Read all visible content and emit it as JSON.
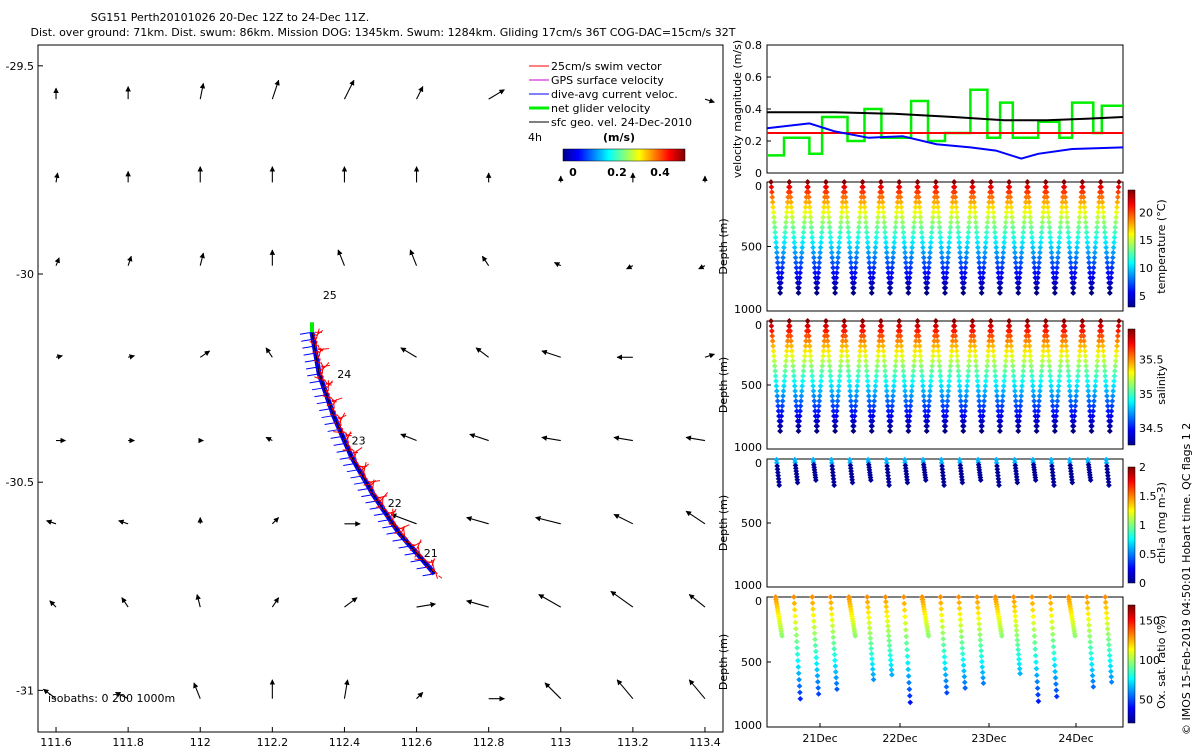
{
  "title_line1": "SG151 Perth20101026 20-Dec 12Z to 24-Dec 11Z.",
  "title_line2": "Dist. over ground: 71km. Dist. swum: 86km. Mission DOG: 1345km. Swum: 1284km. Gliding 17cm/s 36T COG-DAC=15cm/s 32T",
  "credit": "© IMOS 15-Feb-2019 04:50:01 Hobart time. QC flags 1  2",
  "colors": {
    "swim": "#ff0000",
    "gps": "#cc00cc",
    "dac": "#0000ff",
    "net": "#00ee00",
    "geo": "#000000"
  },
  "chart_data": [
    {
      "type": "map-quiver",
      "xlim": [
        111.55,
        113.45
      ],
      "ylim": [
        -31.1,
        -29.45
      ],
      "xticks": [
        111.6,
        111.8,
        112,
        112.2,
        112.4,
        112.6,
        112.8,
        113,
        113.2,
        113.4
      ],
      "xtick_labels": [
        "111.6",
        "111.8",
        "112",
        "112.2",
        "112.4",
        "112.6",
        "112.8",
        "113",
        "113.2",
        "113.4"
      ],
      "yticks": [
        -29.5,
        -30,
        -30.5,
        -31
      ],
      "ytick_labels": [
        "-29.5",
        "-30",
        "-30.5",
        "-31"
      ],
      "legend": {
        "placement": "top-right",
        "entries": [
          "25cm/s swim vector",
          "GPS surface velocity",
          "dive-avg current veloc.",
          "net glider velocity",
          "sfc geo. vel. 24-Dec-2010"
        ],
        "scale_label": "4h",
        "colorbar_title": "(m/s)",
        "colorbar_ticks": [
          "0",
          "0.2",
          "0.4"
        ]
      },
      "isobaths_label": "isobaths: 0   200  1000m",
      "day_labels": [
        {
          "text": "25",
          "lon": 112.34,
          "lat": -30.06
        },
        {
          "text": "24",
          "lon": 112.38,
          "lat": -30.25
        },
        {
          "text": "23",
          "lon": 112.42,
          "lat": -30.41
        },
        {
          "text": "22",
          "lon": 112.52,
          "lat": -30.56
        },
        {
          "text": "21",
          "lon": 112.62,
          "lat": -30.68
        }
      ],
      "track": [
        [
          112.31,
          -30.14
        ],
        [
          112.33,
          -30.24
        ],
        [
          112.37,
          -30.34
        ],
        [
          112.42,
          -30.44
        ],
        [
          112.48,
          -30.53
        ],
        [
          112.55,
          -30.62
        ],
        [
          112.65,
          -30.72
        ]
      ],
      "net_start": [
        112.31,
        -30.14
      ],
      "geo_vectors": [
        [
          111.6,
          -29.58,
          0,
          0.035
        ],
        [
          111.8,
          -29.58,
          0,
          0.04
        ],
        [
          112,
          -29.58,
          0.01,
          0.05
        ],
        [
          112.2,
          -29.58,
          0.02,
          0.06
        ],
        [
          112.4,
          -29.58,
          0.03,
          0.06
        ],
        [
          112.6,
          -29.58,
          0.02,
          0.04
        ],
        [
          112.8,
          -29.58,
          0.05,
          0.03
        ],
        [
          113.4,
          -29.58,
          0.03,
          -0.01
        ],
        [
          111.6,
          -29.78,
          0.005,
          0.03
        ],
        [
          111.8,
          -29.78,
          0,
          0.035
        ],
        [
          112,
          -29.78,
          0,
          0.05
        ],
        [
          112.2,
          -29.78,
          0,
          0.05
        ],
        [
          112.4,
          -29.78,
          0,
          0.05
        ],
        [
          112.6,
          -29.78,
          0,
          0.05
        ],
        [
          112.8,
          -29.78,
          0,
          0.03
        ],
        [
          113,
          -29.78,
          0,
          0.02
        ],
        [
          113.2,
          -29.78,
          0,
          0.03
        ],
        [
          113.4,
          -29.78,
          0,
          0.02
        ],
        [
          111.6,
          -29.98,
          0.01,
          0.025
        ],
        [
          111.8,
          -29.98,
          0.01,
          0.03
        ],
        [
          112,
          -29.98,
          0.01,
          0.04
        ],
        [
          112.2,
          -29.98,
          0,
          0.05
        ],
        [
          112.4,
          -29.98,
          -0.02,
          0.05
        ],
        [
          112.6,
          -29.98,
          -0.02,
          0.05
        ],
        [
          112.8,
          -29.98,
          -0.02,
          0.03
        ],
        [
          113,
          -29.98,
          -0.02,
          0.01
        ],
        [
          113.2,
          -29.98,
          -0.02,
          -0.01
        ],
        [
          113.4,
          -29.98,
          -0.02,
          -0.01
        ],
        [
          111.6,
          -30.2,
          0.02,
          0.005
        ],
        [
          111.8,
          -30.2,
          0.02,
          0.005
        ],
        [
          112,
          -30.2,
          0.03,
          0.02
        ],
        [
          112.2,
          -30.2,
          -0.02,
          0.03
        ],
        [
          112.6,
          -30.2,
          -0.05,
          0.03
        ],
        [
          112.8,
          -30.2,
          -0.04,
          0.03
        ],
        [
          113,
          -30.2,
          -0.06,
          0.02
        ],
        [
          113.2,
          -30.2,
          -0.05,
          0
        ],
        [
          113.4,
          -30.2,
          0.03,
          0.01
        ],
        [
          111.6,
          -30.4,
          0.03,
          0
        ],
        [
          111.8,
          -30.4,
          0.02,
          0
        ],
        [
          112,
          -30.4,
          0.01,
          0
        ],
        [
          112.2,
          -30.4,
          -0.02,
          0.01
        ],
        [
          112.6,
          -30.4,
          -0.05,
          0.02
        ],
        [
          112.8,
          -30.4,
          -0.06,
          0.02
        ],
        [
          113,
          -30.4,
          -0.06,
          0.01
        ],
        [
          113.2,
          -30.4,
          -0.06,
          0.01
        ],
        [
          113.4,
          -30.4,
          -0.06,
          0.01
        ],
        [
          111.6,
          -30.6,
          -0.03,
          0.01
        ],
        [
          111.8,
          -30.6,
          -0.03,
          0.01
        ],
        [
          112,
          -30.6,
          0,
          0.02
        ],
        [
          112.2,
          -30.6,
          0.02,
          0.02
        ],
        [
          112.4,
          -30.6,
          0.05,
          0
        ],
        [
          112.6,
          -30.6,
          -0.08,
          0.03
        ],
        [
          112.8,
          -30.6,
          -0.07,
          0.02
        ],
        [
          113,
          -30.6,
          -0.08,
          0.02
        ],
        [
          113.2,
          -30.6,
          -0.06,
          0.03
        ],
        [
          113.4,
          -30.6,
          -0.06,
          0.04
        ],
        [
          111.6,
          -30.8,
          -0.02,
          0.02
        ],
        [
          111.8,
          -30.8,
          -0.02,
          0.03
        ],
        [
          112,
          -30.8,
          -0.01,
          0.04
        ],
        [
          112.2,
          -30.8,
          0.02,
          0.03
        ],
        [
          112.4,
          -30.8,
          0.04,
          0.03
        ],
        [
          112.6,
          -30.8,
          0.06,
          0.01
        ],
        [
          112.8,
          -30.8,
          -0.07,
          0.02
        ],
        [
          113,
          -30.8,
          -0.07,
          0.04
        ],
        [
          113.2,
          -30.8,
          -0.07,
          0.05
        ],
        [
          113.4,
          -30.8,
          -0.05,
          0.04
        ],
        [
          111.6,
          -31.02,
          -0.04,
          0.03
        ],
        [
          111.8,
          -31.02,
          -0.04,
          0.02
        ],
        [
          112,
          -31.02,
          -0.02,
          0.05
        ],
        [
          112.2,
          -31.02,
          0,
          0.06
        ],
        [
          112.4,
          -31.02,
          0.01,
          0.06
        ],
        [
          112.6,
          -31.02,
          0.02,
          0.02
        ],
        [
          112.8,
          -31.02,
          0.05,
          0
        ],
        [
          113,
          -31.02,
          -0.05,
          0.05
        ],
        [
          113.2,
          -31.02,
          -0.05,
          0.06
        ],
        [
          113.4,
          -31.02,
          -0.05,
          0.06
        ]
      ]
    },
    {
      "type": "line",
      "ylabel": "velocity magnitude (m/s)",
      "ylim": [
        0,
        0.8
      ],
      "yticks": [
        0,
        0.2,
        0.4,
        0.6,
        0.8
      ],
      "xlim": [
        0,
        4.2
      ],
      "series": [
        {
          "name": "net glider velocity",
          "color": "#00ee00",
          "x": [
            0,
            0.2,
            0.2,
            0.5,
            0.5,
            0.65,
            0.65,
            0.95,
            0.95,
            1.15,
            1.15,
            1.35,
            1.35,
            1.7,
            1.7,
            1.9,
            1.9,
            2.1,
            2.1,
            2.4,
            2.4,
            2.6,
            2.6,
            2.75,
            2.75,
            2.9,
            2.9,
            3.2,
            3.2,
            3.45,
            3.45,
            3.6,
            3.6,
            3.85,
            3.85,
            3.95,
            3.95,
            4.2
          ],
          "y": [
            0.11,
            0.11,
            0.22,
            0.22,
            0.12,
            0.12,
            0.35,
            0.35,
            0.2,
            0.2,
            0.4,
            0.4,
            0.22,
            0.22,
            0.45,
            0.45,
            0.2,
            0.2,
            0.25,
            0.25,
            0.52,
            0.52,
            0.22,
            0.22,
            0.44,
            0.44,
            0.22,
            0.22,
            0.32,
            0.32,
            0.22,
            0.22,
            0.44,
            0.44,
            0.25,
            0.25,
            0.42,
            0.42
          ]
        },
        {
          "name": "25cm/s swim vector",
          "color": "#ff0000",
          "x": [
            0,
            4.2
          ],
          "y": [
            0.25,
            0.25
          ]
        },
        {
          "name": "dive-avg current",
          "color": "#0000ff",
          "x": [
            0,
            0.5,
            0.8,
            1.2,
            1.6,
            2.0,
            2.4,
            2.7,
            3.0,
            3.2,
            3.6,
            4.2
          ],
          "y": [
            0.28,
            0.31,
            0.26,
            0.22,
            0.23,
            0.18,
            0.16,
            0.14,
            0.09,
            0.12,
            0.15,
            0.16
          ]
        },
        {
          "name": "sfc geo. vel.",
          "color": "#000000",
          "x": [
            0,
            0.8,
            1.5,
            2.2,
            2.8,
            3.3,
            3.8,
            4.2
          ],
          "y": [
            0.38,
            0.38,
            0.37,
            0.35,
            0.33,
            0.33,
            0.34,
            0.35
          ]
        }
      ]
    },
    {
      "type": "scatter-section",
      "ylabel": "Depth (m)",
      "yticks": [
        "0",
        "500",
        "1000"
      ],
      "colorbar_label": "temperature (°C)",
      "colorbar_ticks": [
        "5",
        "10",
        "15",
        "20"
      ],
      "cmin": 3,
      "cmax": 24,
      "ncycles": 19,
      "maxdepth": 860,
      "shape": "sawtooth"
    },
    {
      "type": "scatter-section",
      "ylabel": "Depth (m)",
      "yticks": [
        "0",
        "500",
        "1000"
      ],
      "colorbar_label": "salinity",
      "colorbar_ticks": [
        "34.5",
        "35",
        "35.5"
      ],
      "cmin": 34.25,
      "cmax": 35.95,
      "ncycles": 19,
      "maxdepth": 860,
      "shape": "sawtooth"
    },
    {
      "type": "scatter-section",
      "ylabel": "Depth (m)",
      "yticks": [
        "0",
        "500",
        "1000"
      ],
      "colorbar_label": "chl-a (mg m-3)",
      "colorbar_ticks": [
        "0",
        "0.5",
        "1",
        "1.5",
        "2"
      ],
      "cmin": 0,
      "cmax": 2,
      "ncycles": 19,
      "maxdepth": 200,
      "shape": "shallow"
    },
    {
      "type": "scatter-section",
      "ylabel": "Depth (m)",
      "yticks": [
        "0",
        "500",
        "1000"
      ],
      "colorbar_label": "Ox. sat. ratio (%)",
      "colorbar_ticks": [
        "50",
        "100",
        "150"
      ],
      "cmin": 20,
      "cmax": 170,
      "ncycles": 19,
      "maxdepth": 820,
      "shape": "oxygen",
      "xtick_labels": [
        "21Dec",
        "22Dec",
        "23Dec",
        "24Dec"
      ]
    }
  ]
}
